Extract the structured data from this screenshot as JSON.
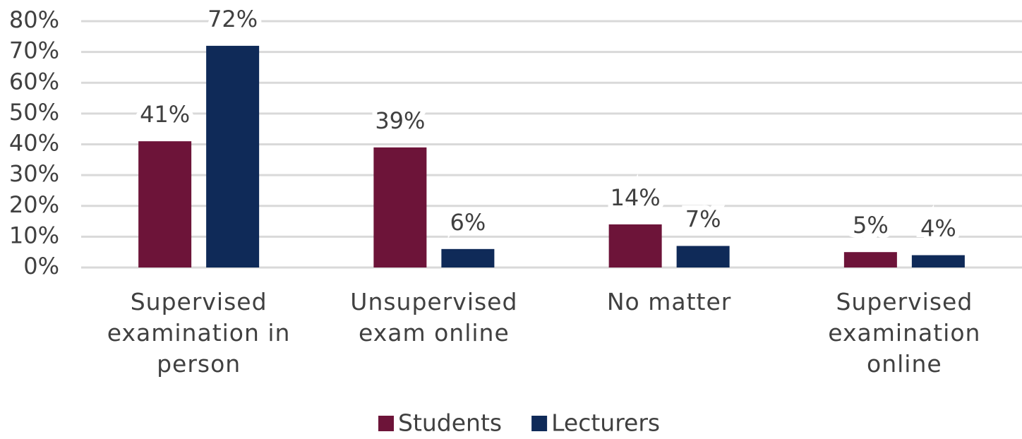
{
  "chart_data": {
    "type": "bar",
    "categories": [
      "Supervised examination in person",
      "Unsupervised exam online",
      "No matter",
      "Supervised examination online"
    ],
    "series": [
      {
        "name": "Students",
        "color": "#6d1439",
        "values": [
          41,
          39,
          14,
          5
        ],
        "value_labels": [
          "41%",
          "39%",
          "14%",
          "5%"
        ]
      },
      {
        "name": "Lecturers",
        "color": "#0f2a58",
        "values": [
          72,
          6,
          7,
          4
        ],
        "value_labels": [
          "72%",
          "6%",
          "7%",
          "4%"
        ]
      }
    ],
    "ylim": [
      0,
      80
    ],
    "yticks": [
      {
        "value": 0,
        "label": "0%"
      },
      {
        "value": 10,
        "label": "10%"
      },
      {
        "value": 20,
        "label": "20%"
      },
      {
        "value": 30,
        "label": "30%"
      },
      {
        "value": 40,
        "label": "40%"
      },
      {
        "value": 50,
        "label": "50%"
      },
      {
        "value": 60,
        "label": "60%"
      },
      {
        "value": 70,
        "label": "70%"
      },
      {
        "value": 80,
        "label": "80%"
      }
    ],
    "grid": true,
    "legend": "bottom"
  }
}
